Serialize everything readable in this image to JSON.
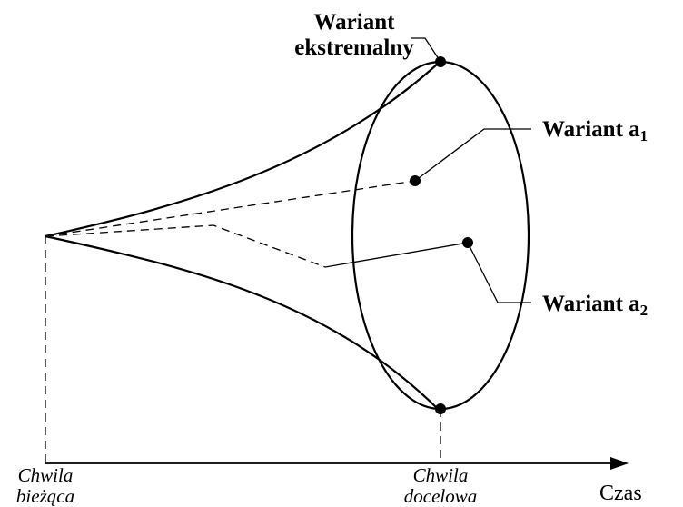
{
  "labels": {
    "extreme": [
      "Wariant",
      "ekstremalny"
    ],
    "variant_a1": {
      "text": "Wariant a",
      "sub": "1"
    },
    "variant_a2": {
      "text": "Wariant a",
      "sub": "2"
    },
    "current_moment": [
      "Chwila",
      "bieżąca"
    ],
    "target_moment": [
      "Chwila",
      "docelowa"
    ],
    "time_axis": "Czas"
  }
}
